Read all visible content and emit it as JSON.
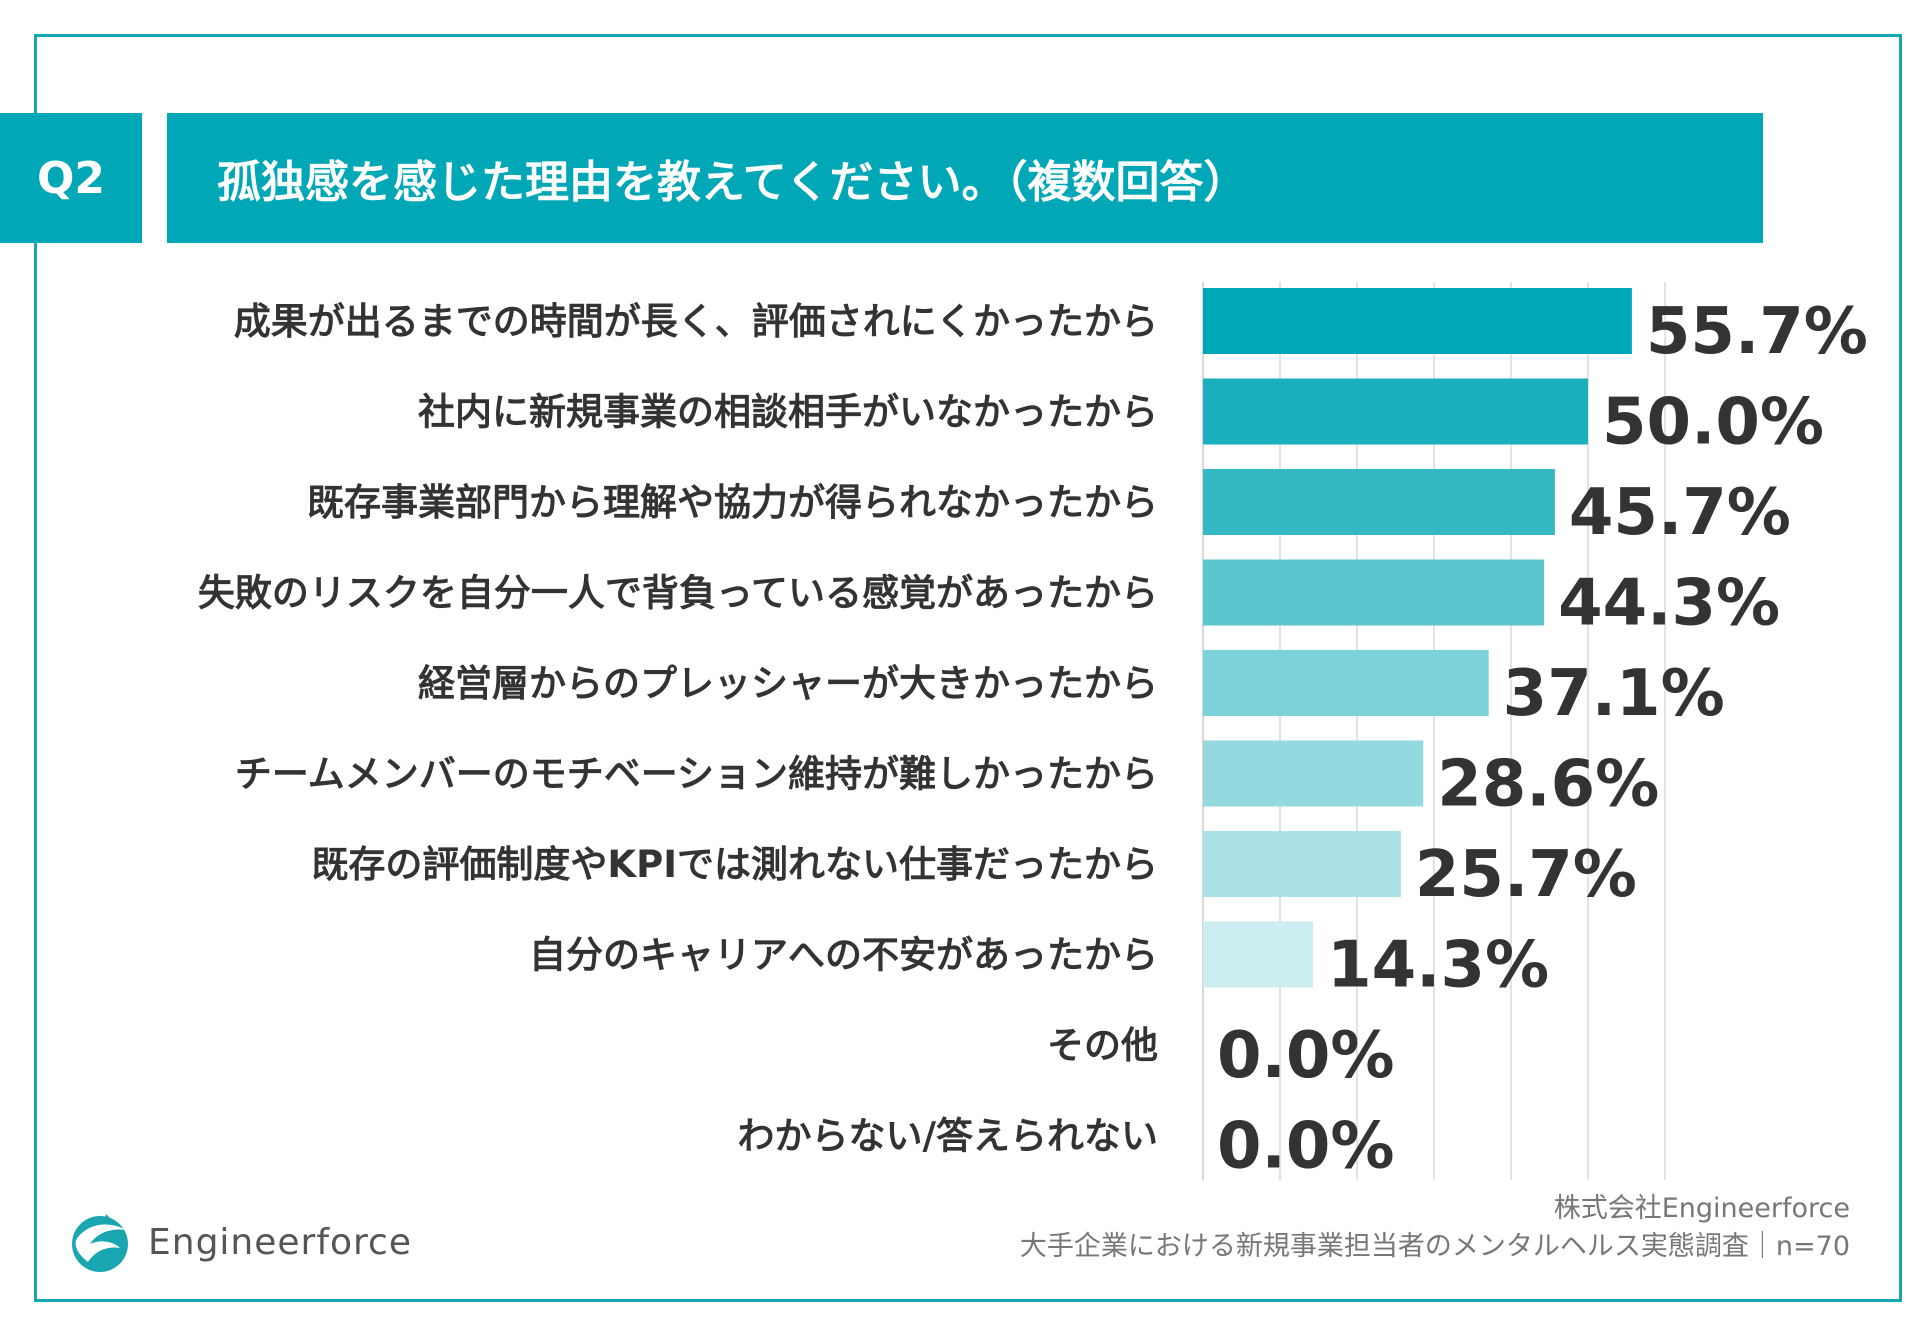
{
  "header": {
    "question_number": "Q2",
    "title": "孤独感を感じた理由を教えてください。（複数回答）"
  },
  "chart_data": {
    "type": "bar",
    "orientation": "horizontal",
    "title": "孤独感を感じた理由を教えてください。（複数回答）",
    "categories": [
      "成果が出るまでの時間が長く、評価されにくかったから",
      "社内に新規事業の相談相手がいなかったから",
      "既存事業部門から理解や協力が得られなかったから",
      "失敗のリスクを自分一人で背負っている感覚があったから",
      "経営層からのプレッシャーが大きかったから",
      "チームメンバーのモチベーション維持が難しかったから",
      "既存の評価制度やKPIでは測れない仕事だったから",
      "自分のキャリアへの不安があったから",
      "その他",
      "わからない/答えられない"
    ],
    "values": [
      55.7,
      50.0,
      45.7,
      44.3,
      37.1,
      28.6,
      25.7,
      14.3,
      0.0,
      0.0
    ],
    "value_labels": [
      "55.7%",
      "50.0%",
      "45.7%",
      "44.3%",
      "37.1%",
      "28.6%",
      "25.7%",
      "14.3%",
      "0.0%",
      "0.0%"
    ],
    "bar_colors": [
      "#00a7b6",
      "#1aafbd",
      "#33b8c4",
      "#5cc6cf",
      "#7dd2d9",
      "#93d9df",
      "#a9e1e6",
      "#cdeef1",
      "#e6f6f8",
      "#e6f6f8"
    ],
    "xlim": [
      0,
      60
    ],
    "gridlines": [
      10,
      20,
      30,
      40,
      50,
      60
    ],
    "grid": true
  },
  "footer": {
    "logo_text": "Engineerforce",
    "source_company": "株式会社Engineerforce",
    "source_survey": "大手企業における新規事業担当者のメンタルヘルス実態調査｜n=70"
  },
  "colors": {
    "accent": "#00a7b6",
    "frame": "#1aa6b0",
    "text": "#333333"
  }
}
